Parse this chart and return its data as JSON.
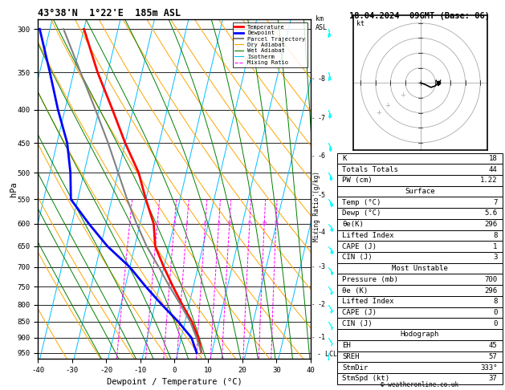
{
  "title_left": "43°38'N  1°22'E  185m ASL",
  "title_right": "18.04.2024  09GMT (Base: 06)",
  "xlabel": "Dewpoint / Temperature (°C)",
  "ylabel_left": "hPa",
  "pressure_levels": [
    300,
    350,
    400,
    450,
    500,
    550,
    600,
    650,
    700,
    750,
    800,
    850,
    900,
    950
  ],
  "xlim": [
    -40,
    40
  ],
  "ylim_p": [
    970,
    290
  ],
  "temp_profile": {
    "pressure": [
      950,
      900,
      850,
      800,
      750,
      700,
      650,
      600,
      550,
      500,
      450,
      400,
      350,
      300
    ],
    "temperature": [
      7,
      5,
      2,
      -2,
      -6,
      -10,
      -14,
      -16,
      -20,
      -24,
      -30,
      -36,
      -43,
      -50
    ]
  },
  "dewp_profile": {
    "pressure": [
      950,
      900,
      850,
      800,
      750,
      700,
      650,
      600,
      550,
      500,
      450,
      400,
      350,
      300
    ],
    "dewpoint": [
      5.6,
      3.0,
      -2.0,
      -8.0,
      -14.0,
      -20.0,
      -28.0,
      -35.0,
      -42.0,
      -44.0,
      -47.0,
      -52.0,
      -57.0,
      -63.0
    ]
  },
  "parcel_profile": {
    "pressure": [
      950,
      900,
      850,
      800,
      750,
      700,
      650,
      600,
      550,
      500,
      450,
      400,
      350,
      300
    ],
    "temperature": [
      7.0,
      4.5,
      1.5,
      -2.5,
      -7.0,
      -11.5,
      -16.5,
      -21.0,
      -25.5,
      -30.0,
      -35.0,
      -41.0,
      -48.0,
      -56.0
    ]
  },
  "wind_barbs_right": {
    "pressure": [
      950,
      900,
      850,
      800,
      750,
      700,
      650,
      600,
      550,
      500,
      450,
      400,
      350,
      300
    ],
    "u_kt": [
      0,
      -5,
      -8,
      -10,
      -12,
      -15,
      -18,
      -20,
      -20,
      -18,
      -15,
      -12,
      -10,
      -8
    ],
    "v_kt": [
      5,
      8,
      12,
      15,
      18,
      20,
      22,
      25,
      28,
      30,
      32,
      33,
      35,
      36
    ]
  },
  "wind_barbs_left": {
    "pressure": [
      950,
      900,
      850,
      800,
      750,
      700,
      650,
      600,
      550,
      500,
      450,
      400,
      350,
      300
    ],
    "u_kt": [
      0,
      -3,
      -6,
      -8,
      -10,
      -12,
      -15,
      -18,
      -20,
      -22,
      -24,
      -26,
      -28,
      -30
    ],
    "v_kt": [
      3,
      5,
      8,
      10,
      12,
      15,
      18,
      20,
      22,
      25,
      28,
      30,
      32,
      35
    ]
  },
  "mixing_ratios": [
    1,
    2,
    3,
    4,
    6,
    8,
    10,
    15,
    20,
    25
  ],
  "km_labels": {
    "values": [
      1,
      2,
      3,
      4,
      5,
      6,
      7,
      8
    ],
    "pressure": [
      900,
      800,
      700,
      618,
      542,
      472,
      412,
      358
    ]
  },
  "lcl_pressure": 955,
  "colors": {
    "temperature": "#ff0000",
    "dewpoint": "#0000ff",
    "parcel": "#808080",
    "isotherm": "#00bfff",
    "dry_adiabat": "#ffa500",
    "wet_adiabat": "#008000",
    "mixing_ratio": "#ff00ff",
    "background": "#ffffff",
    "grid": "#000000"
  },
  "legend_entries": [
    {
      "label": "Temperature",
      "color": "#ff0000",
      "lw": 2.0,
      "ls": "-"
    },
    {
      "label": "Dewpoint",
      "color": "#0000ff",
      "lw": 2.0,
      "ls": "-"
    },
    {
      "label": "Parcel Trajectory",
      "color": "#808080",
      "lw": 1.5,
      "ls": "-"
    },
    {
      "label": "Dry Adiabat",
      "color": "#ffa500",
      "lw": 0.8,
      "ls": "-"
    },
    {
      "label": "Wet Adiabat",
      "color": "#008000",
      "lw": 0.8,
      "ls": "-"
    },
    {
      "label": "Isotherm",
      "color": "#00bfff",
      "lw": 0.8,
      "ls": "-"
    },
    {
      "label": "Mixing Ratio",
      "color": "#ff00ff",
      "lw": 0.8,
      "ls": "--"
    }
  ],
  "info_table": {
    "K": "18",
    "Totals Totals": "44",
    "PW (cm)": "1.22",
    "Surface_rows": [
      [
        "Temp (°C)",
        "7"
      ],
      [
        "Dewp (°C)",
        "5.6"
      ],
      [
        "θe(K)",
        "296"
      ],
      [
        "Lifted Index",
        "8"
      ],
      [
        "CAPE (J)",
        "1"
      ],
      [
        "CIN (J)",
        "3"
      ]
    ],
    "MostUnstable_rows": [
      [
        "Pressure (mb)",
        "700"
      ],
      [
        "θe (K)",
        "296"
      ],
      [
        "Lifted Index",
        "8"
      ],
      [
        "CAPE (J)",
        "0"
      ],
      [
        "CIN (J)",
        "0"
      ]
    ],
    "Hodograph_rows": [
      [
        "EH",
        "45"
      ],
      [
        "SREH",
        "57"
      ],
      [
        "StmDir",
        "333°"
      ],
      [
        "StmSpd (kt)",
        "37"
      ]
    ]
  },
  "hodograph": {
    "points_u": [
      0.0,
      3.0,
      7.0,
      10.0,
      12.0
    ],
    "points_v": [
      0.0,
      -1.0,
      -3.0,
      -2.0,
      0.0
    ],
    "storm_u": 12.0,
    "storm_v": -2.0,
    "rings": [
      10,
      20,
      30,
      40
    ],
    "gray_points_u": [
      -12,
      -22,
      -28
    ],
    "gray_points_v": [
      -8,
      -15,
      -20
    ]
  },
  "skew_factor": 1.0,
  "font": "monospace"
}
